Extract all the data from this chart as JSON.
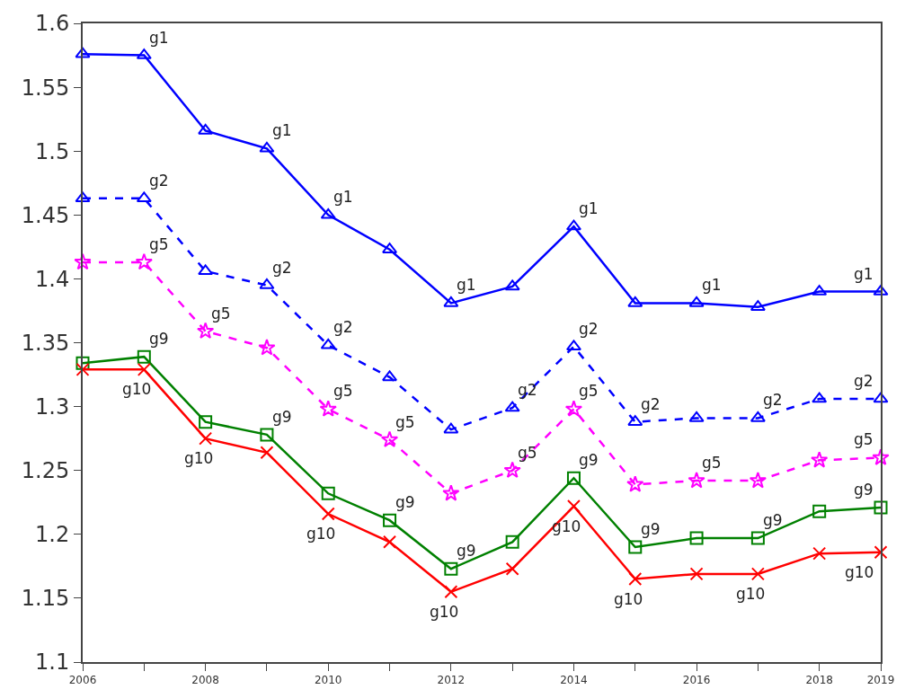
{
  "chart_data": {
    "type": "line",
    "x": [
      2006,
      2007,
      2008,
      2009,
      2010,
      2011,
      2012,
      2013,
      2014,
      2015,
      2016,
      2017,
      2018,
      2019
    ],
    "series": [
      {
        "color": "#0000ff",
        "marker": "triangle",
        "line_style": "solid",
        "values": [
          1.576,
          1.575,
          1.516,
          1.502,
          1.45,
          1.423,
          1.381,
          1.394,
          1.441,
          1.381,
          1.381,
          1.378,
          1.39,
          1.39
        ]
      },
      {
        "color": "#0000ff",
        "marker": "triangle",
        "line_style": "dashed",
        "values": [
          1.463,
          1.463,
          1.406,
          1.395,
          1.348,
          1.323,
          1.282,
          1.299,
          1.347,
          1.288,
          1.291,
          1.291,
          1.306,
          1.306
        ]
      },
      {
        "color": "#ff00ff",
        "marker": "star",
        "line_style": "dashed",
        "values": [
          1.413,
          1.413,
          1.359,
          1.346,
          1.298,
          1.274,
          1.232,
          1.25,
          1.298,
          1.239,
          1.242,
          1.242,
          1.258,
          1.26
        ]
      },
      {
        "color": "#008000",
        "marker": "square",
        "line_style": "solid",
        "values": [
          1.334,
          1.339,
          1.288,
          1.278,
          1.232,
          1.211,
          1.173,
          1.194,
          1.244,
          1.19,
          1.197,
          1.197,
          1.218,
          1.221
        ]
      },
      {
        "color": "#ff0000",
        "marker": "cross",
        "line_style": "solid",
        "values": [
          1.329,
          1.329,
          1.275,
          1.264,
          1.216,
          1.194,
          1.155,
          1.173,
          1.222,
          1.165,
          1.169,
          1.169,
          1.185,
          1.186
        ]
      }
    ],
    "xlim": [
      2006,
      2019
    ],
    "xticks": [
      2006,
      {
        "value": 2007,
        "label": null
      },
      2008,
      {
        "value": 2009,
        "label": null
      },
      2010,
      {
        "value": 2011,
        "label": null
      },
      2012,
      {
        "value": 2013,
        "label": null
      },
      2014,
      {
        "value": 2015,
        "label": null
      },
      2016,
      {
        "value": 2017,
        "label": null
      },
      2018,
      2019
    ],
    "ylim": [
      1.1,
      1.6
    ],
    "yticks": [
      1.1,
      1.15,
      1.2,
      1.25,
      1.3,
      1.35,
      1.4,
      1.45,
      1.5,
      1.55,
      1.6
    ],
    "annotations": [
      {
        "text": "g1",
        "x": 2007,
        "y": 1.575
      },
      {
        "text": "g1",
        "x": 2009,
        "y": 1.502
      },
      {
        "text": "g1",
        "x": 2010,
        "y": 1.45
      },
      {
        "text": "g1",
        "x": 2012,
        "y": 1.381
      },
      {
        "text": "g1",
        "x": 2014,
        "y": 1.441
      },
      {
        "text": "g1",
        "x": 2016,
        "y": 1.381
      },
      {
        "text": "g1",
        "x": 2019,
        "y": 1.39
      },
      {
        "text": "g2",
        "x": 2007,
        "y": 1.463
      },
      {
        "text": "g2",
        "x": 2009,
        "y": 1.395
      },
      {
        "text": "g2",
        "x": 2010,
        "y": 1.348
      },
      {
        "text": "g2",
        "x": 2013,
        "y": 1.299
      },
      {
        "text": "g2",
        "x": 2014,
        "y": 1.347
      },
      {
        "text": "g2",
        "x": 2015,
        "y": 1.288
      },
      {
        "text": "g2",
        "x": 2017,
        "y": 1.291
      },
      {
        "text": "g2",
        "x": 2019,
        "y": 1.306
      },
      {
        "text": "g5",
        "x": 2007,
        "y": 1.413
      },
      {
        "text": "g5",
        "x": 2008,
        "y": 1.359
      },
      {
        "text": "g5",
        "x": 2010,
        "y": 1.298
      },
      {
        "text": "g5",
        "x": 2011,
        "y": 1.274
      },
      {
        "text": "g5",
        "x": 2013,
        "y": 1.25
      },
      {
        "text": "g5",
        "x": 2014,
        "y": 1.298
      },
      {
        "text": "g5",
        "x": 2016,
        "y": 1.242
      },
      {
        "text": "g5",
        "x": 2019,
        "y": 1.26
      },
      {
        "text": "g9",
        "x": 2007,
        "y": 1.339
      },
      {
        "text": "g9",
        "x": 2009,
        "y": 1.278
      },
      {
        "text": "g9",
        "x": 2011,
        "y": 1.211
      },
      {
        "text": "g9",
        "x": 2012,
        "y": 1.173
      },
      {
        "text": "g9",
        "x": 2014,
        "y": 1.244
      },
      {
        "text": "g9",
        "x": 2015,
        "y": 1.19
      },
      {
        "text": "g9",
        "x": 2017,
        "y": 1.197
      },
      {
        "text": "g9",
        "x": 2019,
        "y": 1.221
      },
      {
        "text": "g10",
        "x": 2007,
        "y": 1.329
      },
      {
        "text": "g10",
        "x": 2008,
        "y": 1.275
      },
      {
        "text": "g10",
        "x": 2010,
        "y": 1.216
      },
      {
        "text": "g10",
        "x": 2012,
        "y": 1.155
      },
      {
        "text": "g10",
        "x": 2014,
        "y": 1.222
      },
      {
        "text": "g10",
        "x": 2015,
        "y": 1.165
      },
      {
        "text": "g10",
        "x": 2017,
        "y": 1.169
      },
      {
        "text": "g10",
        "x": 2019,
        "y": 1.186
      }
    ]
  }
}
